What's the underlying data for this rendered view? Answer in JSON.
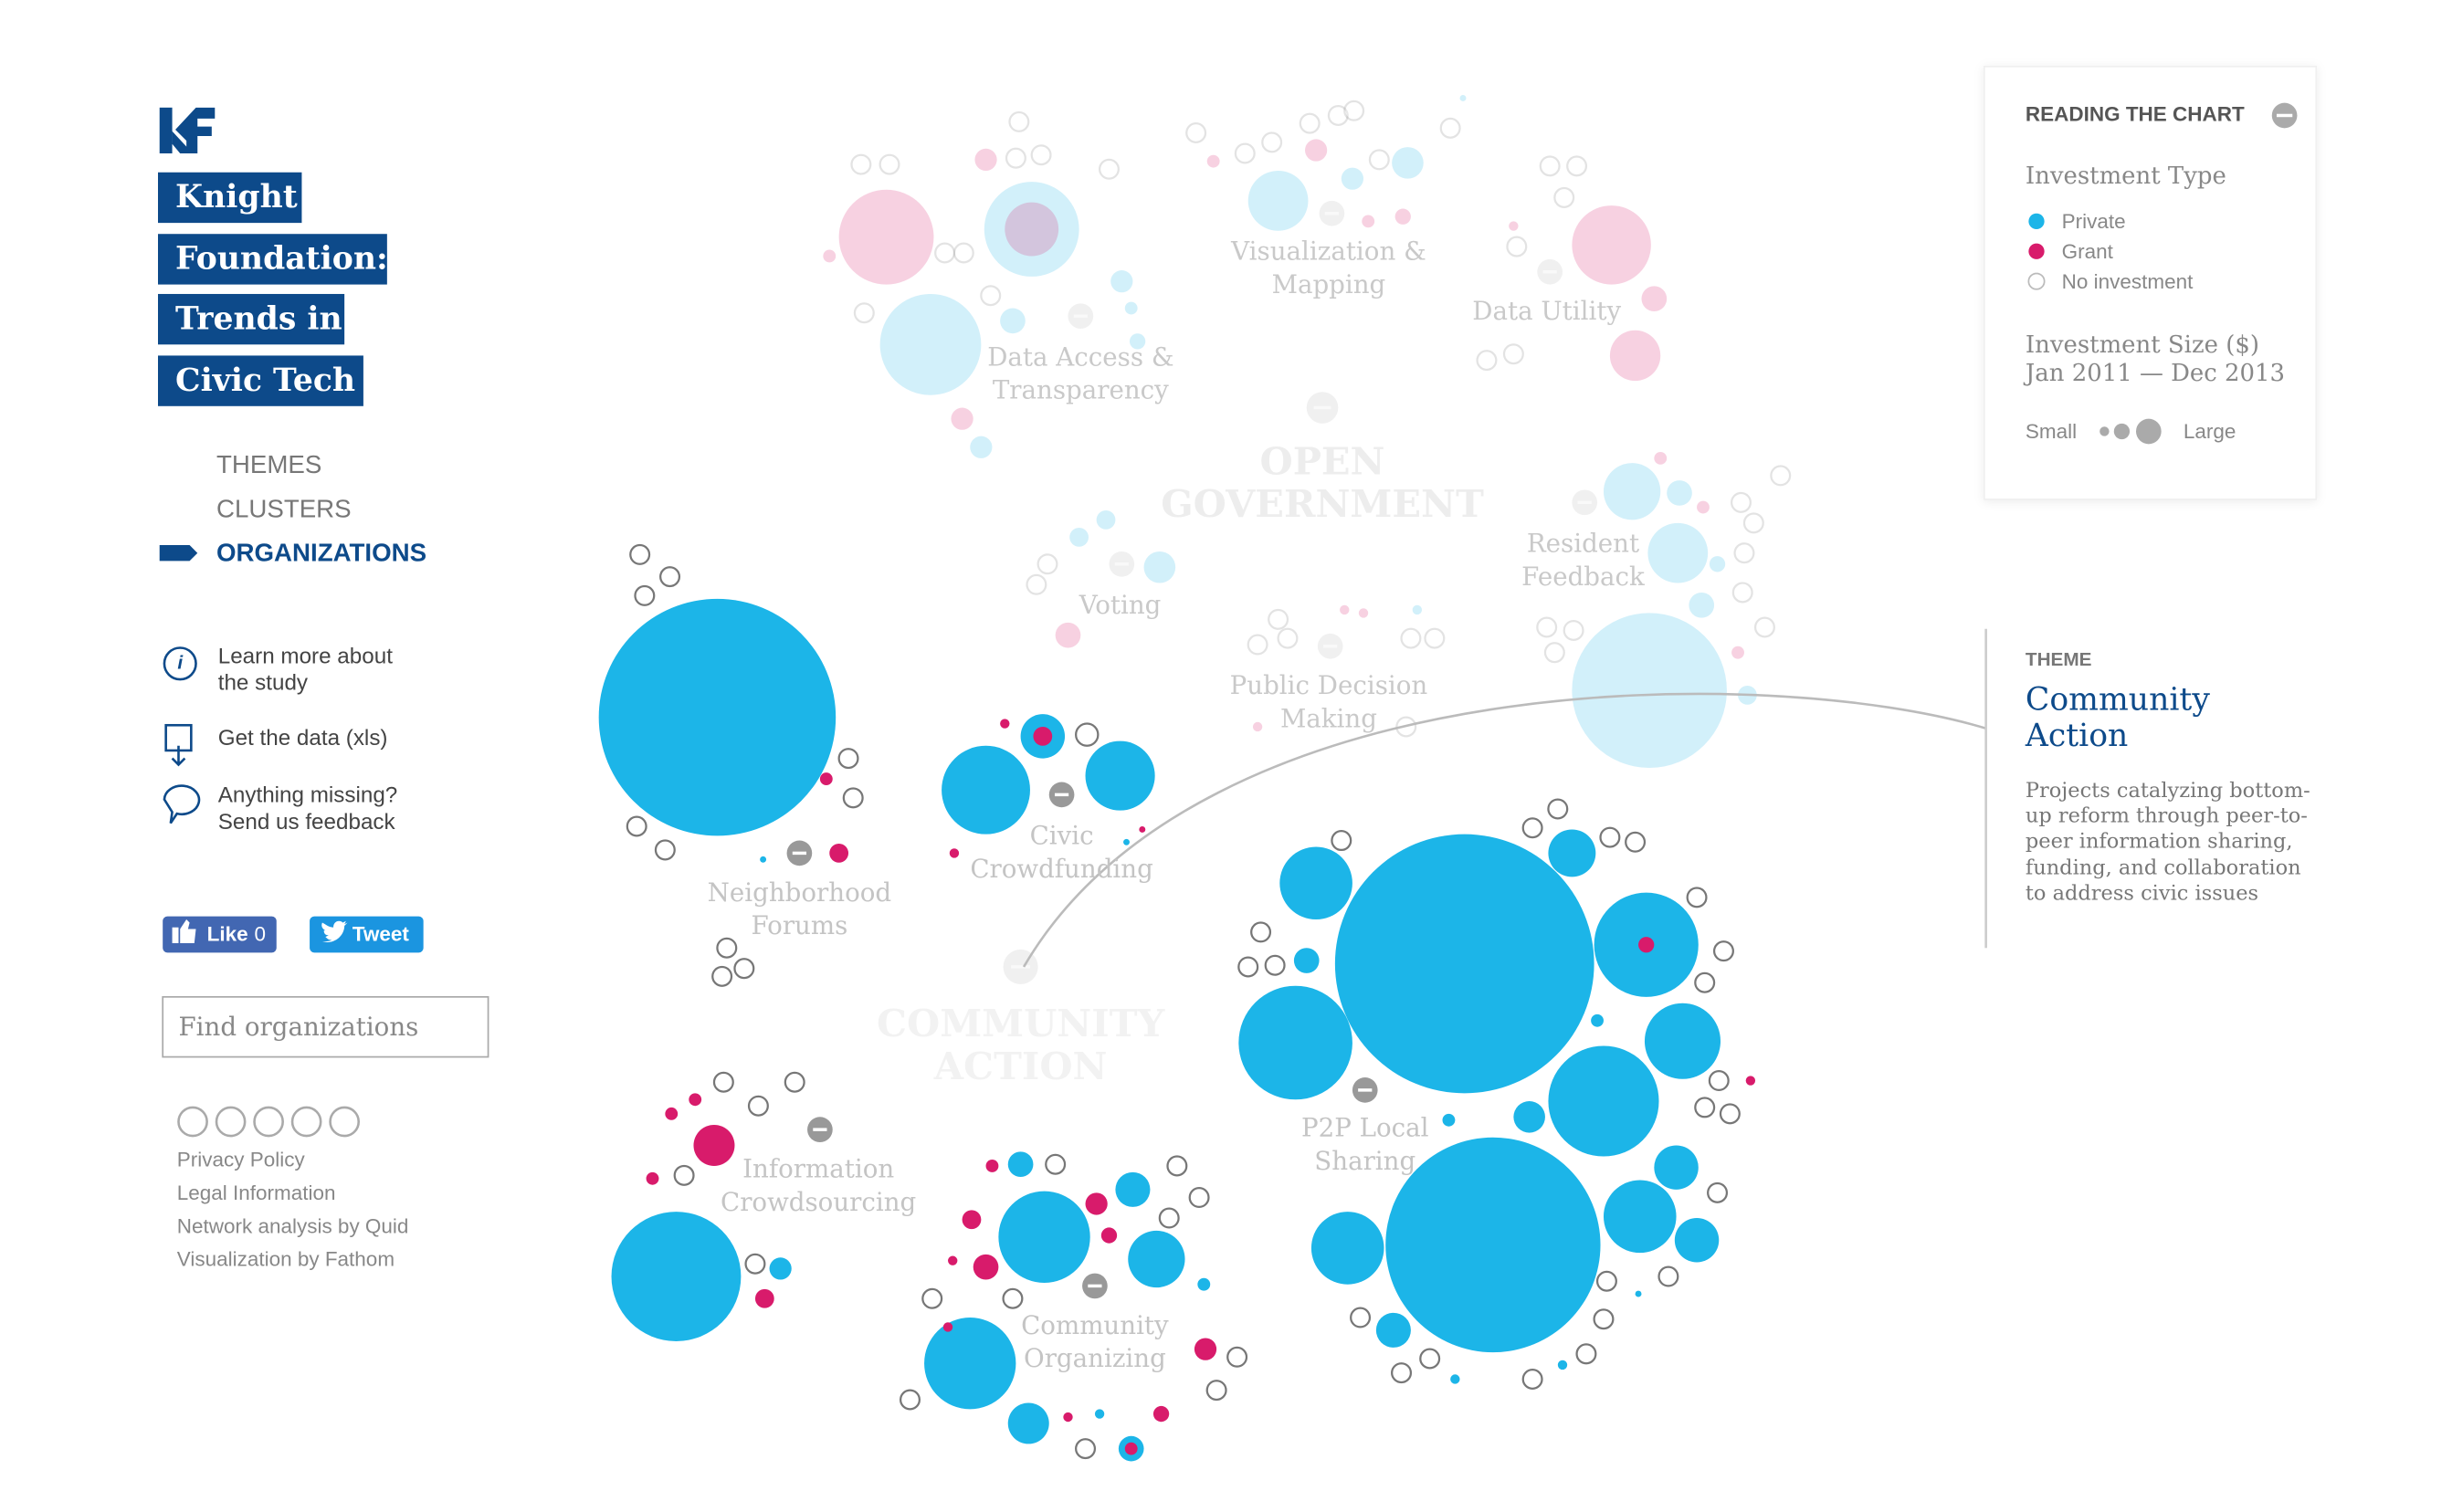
{
  "header": {
    "title_lines": [
      "Knight",
      "Foundation:",
      "Trends in",
      "Civic Tech"
    ]
  },
  "nav": [
    "THEMES",
    "CLUSTERS",
    "ORGANIZATIONS"
  ],
  "links": [
    {
      "lines": [
        "Learn more about",
        "the study"
      ]
    },
    {
      "lines": [
        "Get the data (xls)"
      ]
    },
    {
      "lines": [
        "Anything missing?",
        "Send us feedback"
      ]
    }
  ],
  "social": {
    "like": "Like",
    "like_count": "0",
    "tweet": "Tweet"
  },
  "search_placeholder": "Find organizations",
  "footer": [
    "Privacy Policy",
    "Legal Information",
    "Network analysis by Quid",
    "Visualization by Fathom"
  ],
  "themes": [
    [
      "OPEN",
      "GOVERNMENT"
    ],
    [
      "COMMUNITY",
      "ACTION"
    ]
  ],
  "clusters_faint": [
    [
      "Data Access &",
      "Transparency"
    ],
    [
      "Visualization &",
      "Mapping"
    ],
    [
      "Data Utility"
    ],
    [
      "Resident",
      "Feedback"
    ],
    [
      "Voting"
    ],
    [
      "Public Decision",
      "Making"
    ]
  ],
  "clusters": [
    [
      "Neighborhood",
      "Forums"
    ],
    [
      "Civic",
      "Crowdfunding"
    ],
    [
      "Information",
      "Crowdsourcing"
    ],
    [
      "Community",
      "Organizing"
    ],
    [
      "P2P Local",
      "Sharing"
    ]
  ],
  "legend": {
    "title": "READING THE CHART",
    "type_title": "Investment Type",
    "types": [
      "Private",
      "Grant",
      "No investment"
    ],
    "size_title": [
      "Investment Size ($)",
      "Jan 2011 — Dec 2013"
    ],
    "small": "Small",
    "large": "Large"
  },
  "theme_panel": {
    "label": "THEME",
    "name": [
      "Community",
      "Action"
    ],
    "description": [
      "Projects catalyzing bottom-",
      "up reform through peer-to-",
      "peer information sharing,",
      "funding, and collaboration",
      "to address civic issues"
    ]
  }
}
